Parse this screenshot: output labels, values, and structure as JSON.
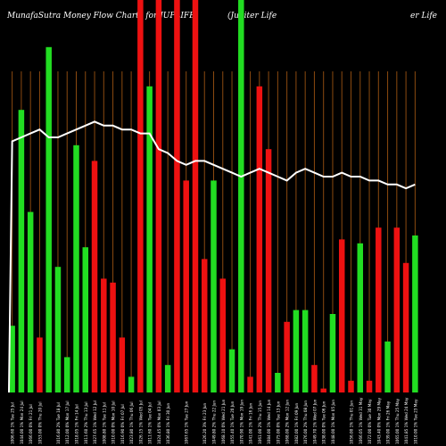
{
  "header": {
    "title_left": "MunafaSutra  Money Flow  Charts for JUPLIFE",
    "title_right": "(Jupiter Life",
    "title_right_end": "er Life"
  },
  "chart_data": {
    "type": "bar",
    "title": "MunafaSutra  Money Flow  Charts for JUPLIFE (Jupiter Life",
    "xlabel": "",
    "ylabel": "",
    "ylim": [
      0,
      100
    ],
    "grid": true,
    "colors": {
      "up": "#22dd22",
      "down": "#ee1111",
      "line": "#ffffff",
      "grid": "#8b4a10",
      "background": "#000000"
    },
    "categories": [
      "Tue 25 Jul 2023",
      "Mon 24 Jul 2023",
      "Fri 21 Jul 2023",
      "Thu 20 Jul 2023",
      "Wed 19 Jul 2023",
      "Tue 18 Jul 2023",
      "Mon 17 Jul 2023",
      "Fri 14 Jul 2023",
      "Thu 13 Jul 2023",
      "Wed 12 Jul 2023",
      "Tue 11 Jul 2023",
      "Mon 10 Jul 2023",
      "Fri 07 Jul 2023",
      "Thu 06 Jul 2023",
      "Wed 05 Jul 2023",
      "Tue 04 Jul 2023",
      "Mon 03 Jul 2023",
      "Fri 30 Jun 2023",
      "Wed 28 Jun 2023",
      "Tue 27 Jun 2023",
      "Mon 26 Jun 2023",
      "Fri 23 Jun 2023",
      "Thu 22 Jun 2023",
      "Wed 21 Jun 2023",
      "Tue 20 Jun 2023",
      "Mon 19 Jun 2023",
      "Fri 16 Jun 2023",
      "Thu 15 Jun 2023",
      "Wed 14 Jun 2023",
      "Tue 13 Jun 2023",
      "Mon 12 Jun 2023",
      "Fri 09 Jun 2023",
      "Thu 08 Jun 2023",
      "Wed 07 Jun 2023",
      "Tue 06 Jun 2023",
      "Mon 05 Jun 2023",
      "Fri 02 Jun 2023",
      "Thu 01 Jun 2023",
      "Wed 31 May 2023",
      "Tue 30 May 2023",
      "Mon 29 May 2023",
      "Fri 26 May 2023",
      "Thu 25 May 2023",
      "Wed 24 May 2023",
      "Tue 23 May 2023"
    ],
    "x_tick_labels": [
      "1006.60 1% Tue 25 Jul",
      "1044.00 1% Mon 24 Jul",
      "1066.00 0% Fri 21 Jul",
      "1053.00 0% Thu 20 Jul",
      "",
      "1016.80 2% Tue 18 Jul",
      "1012.00 0% Mon 17 Jul",
      "1018.05 1% Fri 14 Jul",
      "1011.60 2% Thu 13 Jul",
      "1027.65 1% Wed 12 Jul",
      "1008.80 1% Tue 11 Jul",
      "1010.00 0% Mon 10 Jul",
      "1016.90 0% Fri 07 Jul",
      "1023.80 1% Thu 06 Jul",
      "1026.15 1% Wed 05 Jul",
      "1011.60 1% Tue 04 Jul",
      "1024.45 0% Mon 03 Jul",
      "1036.80 1% Fri 30 Jun",
      "",
      "1067.65 1% Tue 27 Jun",
      "",
      "1026.20 3% Fri 23 Jun",
      "1049.80 2% Thu 22 Jun",
      "1068.10 0% Wed 21 Jun",
      "1055.40 1% Tue 20 Jun",
      "1070.90 1% Mon 19 Jun",
      "1041.00 1% Fri 16 Jun",
      "1061.00 2% Thu 15 Jun",
      "1084.00 1% Wed 14 Jun",
      "1075.00 0% Tue 13 Jun",
      "1068.00 2% Mon 12 Jun",
      "1082.00 1% Fri 09 Jun",
      "1076.00 2% Thu 08 Jun",
      "1049.70 1% Wed 07 Jun",
      "1038.00 0% Tue 06 Jun",
      "1048.00 1% Mon 05 Jun",
      "",
      "1056.00 1% Thu 01 Jun",
      "1066.05 1% Wed 31 May",
      "1072.00 0% Tue 30 May",
      "1043.40 0% Mon 29 May",
      "1039.00 1% Fri 26 May",
      "1065.00 1% Thu 25 May",
      "1041.85 1% Wed 24 May",
      "1010.00 1% Tue 23 May"
    ],
    "series": [
      {
        "colors": [
          "g",
          "g",
          "g",
          "r",
          "g",
          "g",
          "g",
          "g",
          "g",
          "r",
          "r",
          "r",
          "r",
          "g",
          "r",
          "g",
          "r",
          "g",
          "r",
          "r",
          "r",
          "r",
          "g",
          "r",
          "g",
          "g",
          "r",
          "r",
          "r",
          "g",
          "r",
          "g",
          "g",
          "r",
          "r",
          "g",
          "r",
          "r",
          "g",
          "r",
          "r",
          "g",
          "r",
          "r",
          "g"
        ],
        "values": [
          17,
          72,
          46,
          14,
          88,
          32,
          9,
          63,
          37,
          59,
          29,
          28,
          14,
          4,
          100,
          78,
          100,
          7,
          100,
          54,
          100,
          34,
          54,
          29,
          11,
          100,
          4,
          78,
          62,
          5,
          18,
          21,
          21,
          7,
          1,
          20,
          39,
          3,
          38,
          3,
          42,
          13,
          42,
          33,
          40
        ]
      }
    ],
    "line": [
      64,
      65,
      66,
      67,
      65,
      65,
      66,
      67,
      68,
      69,
      68,
      68,
      67,
      67,
      66,
      66,
      62,
      61,
      59,
      58,
      59,
      59,
      58,
      57,
      56,
      55,
      56,
      57,
      56,
      55,
      54,
      56,
      57,
      56,
      55,
      55,
      56,
      55,
      55,
      54,
      54,
      53,
      53,
      52,
      53
    ]
  }
}
